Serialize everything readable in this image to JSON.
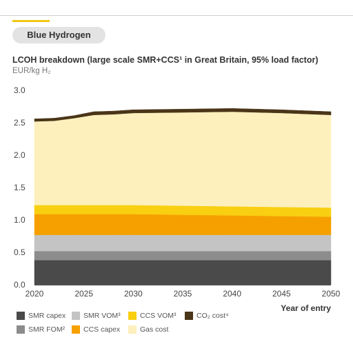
{
  "section_label": "Blue Hydrogen",
  "colors": {
    "accent": "#f2c811"
  },
  "chart_data": {
    "type": "area",
    "stacked": true,
    "title": "LCOH breakdown (large scale SMR+CCS¹ in Great Britain, 95% load factor)",
    "ylabel": "EUR/kg H₂",
    "xlabel": "Year of entry",
    "x": [
      2020,
      2022,
      2024,
      2026,
      2028,
      2030,
      2035,
      2040,
      2045,
      2050
    ],
    "xlim": [
      2020,
      2050
    ],
    "ylim": [
      0,
      3.0
    ],
    "xticks": [
      "2020",
      "2025",
      "2030",
      "2035",
      "2040",
      "2045",
      "2050"
    ],
    "yticks": [
      "0.0",
      "0.5",
      "1.0",
      "1.5",
      "2.0",
      "2.5",
      "3.0"
    ],
    "grid": false,
    "legend_position": "bottom",
    "series": [
      {
        "name": "SMR capex",
        "color": "#4a4a4a",
        "values": [
          0.38,
          0.38,
          0.38,
          0.38,
          0.38,
          0.38,
          0.38,
          0.38,
          0.38,
          0.38
        ]
      },
      {
        "name": "SMR FOM²",
        "color": "#8c8c8c",
        "values": [
          0.14,
          0.14,
          0.14,
          0.14,
          0.14,
          0.14,
          0.14,
          0.14,
          0.14,
          0.14
        ]
      },
      {
        "name": "SMR VOM³",
        "color": "#c4c4c4",
        "values": [
          0.25,
          0.25,
          0.25,
          0.25,
          0.25,
          0.25,
          0.25,
          0.25,
          0.25,
          0.25
        ]
      },
      {
        "name": "CCS capex",
        "color": "#f6a000",
        "values": [
          0.32,
          0.32,
          0.32,
          0.32,
          0.32,
          0.32,
          0.31,
          0.3,
          0.29,
          0.28
        ]
      },
      {
        "name": "CCS VOM³",
        "color": "#f9cf11",
        "values": [
          0.14,
          0.14,
          0.14,
          0.14,
          0.14,
          0.14,
          0.14,
          0.14,
          0.14,
          0.14
        ]
      },
      {
        "name": "Gas cost",
        "color": "#fdf0bd",
        "values": [
          1.29,
          1.3,
          1.34,
          1.39,
          1.4,
          1.42,
          1.44,
          1.46,
          1.45,
          1.43
        ]
      },
      {
        "name": "CO₂ cost⁴",
        "color": "#4a3518",
        "values": [
          0.04,
          0.04,
          0.04,
          0.05,
          0.05,
          0.05,
          0.05,
          0.05,
          0.05,
          0.05
        ]
      }
    ]
  }
}
